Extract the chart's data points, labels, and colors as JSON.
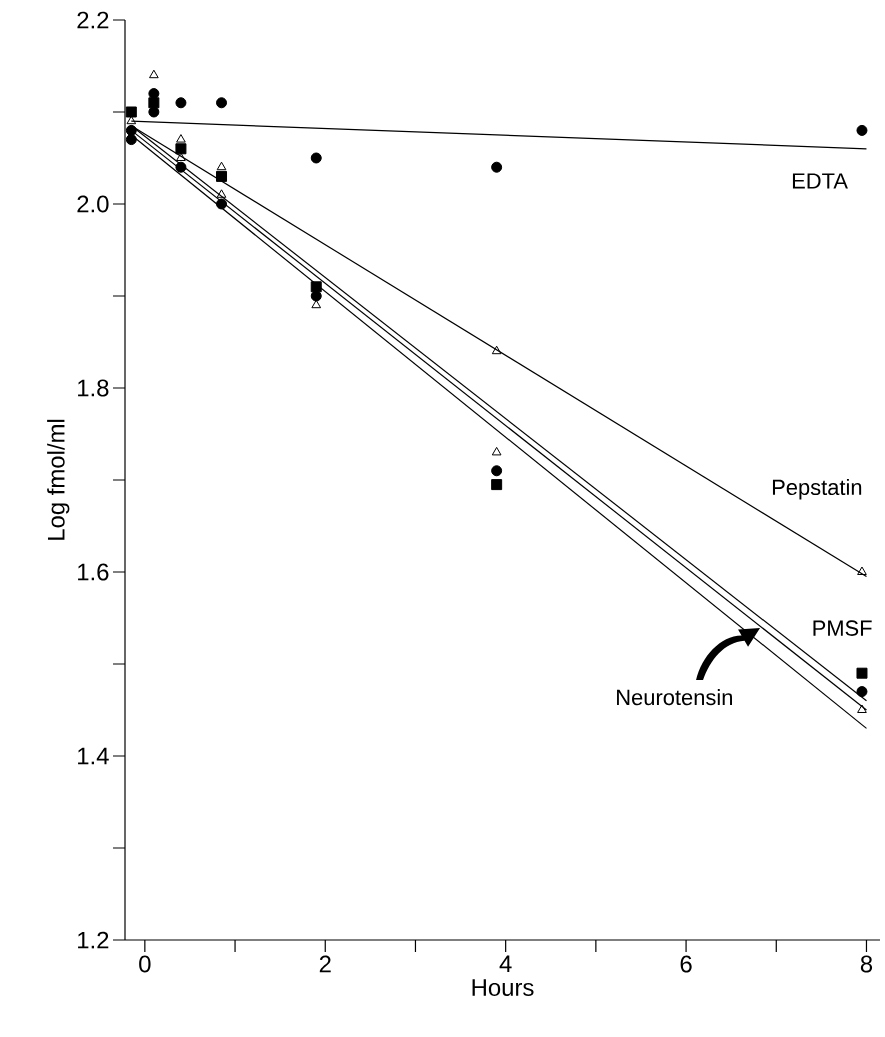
{
  "chart_data": {
    "type": "scatter",
    "xlabel": "Hours",
    "ylabel": "Log fmol/ml",
    "xlim": [
      -0.22,
      8.15
    ],
    "ylim": [
      1.2,
      2.2
    ],
    "xticks": [
      0,
      {
        "value": 1,
        "label": null
      },
      2,
      {
        "value": 3,
        "label": null
      },
      4,
      {
        "value": 5,
        "label": null
      },
      6,
      {
        "value": 7,
        "label": null
      },
      8
    ],
    "yticks": [
      1.2,
      {
        "value": 1.3,
        "label": null
      },
      1.4,
      {
        "value": 1.5,
        "label": null
      },
      1.6,
      {
        "value": 1.7,
        "label": null
      },
      1.8,
      {
        "value": 1.9,
        "label": null
      },
      "2.0",
      {
        "value": 2.1,
        "label": null
      },
      2.2
    ],
    "series": [
      {
        "color": "#000000",
        "marker": "circle",
        "x": [
          -0.15,
          0.1,
          0.4,
          0.85,
          1.9,
          3.9,
          7.95
        ],
        "values": [
          2.08,
          2.1,
          2.11,
          2.11,
          2.05,
          2.04,
          2.08
        ]
      },
      {
        "color": "#000000",
        "marker": "triangle",
        "x": [
          -0.15,
          0.4,
          0.85,
          3.9,
          7.95
        ],
        "values": [
          2.09,
          2.07,
          2.04,
          1.84,
          1.6
        ]
      },
      {
        "color": "#000000",
        "marker": "square",
        "x": [
          -0.15,
          0.1,
          0.4,
          0.85,
          1.9,
          3.9,
          7.95
        ],
        "values": [
          2.1,
          2.11,
          2.06,
          2.03,
          1.91,
          1.695,
          1.49
        ]
      },
      {
        "color": "#000000",
        "marker": "circle",
        "x": [
          -0.15,
          0.1,
          0.4,
          0.85,
          1.9,
          3.9,
          7.95
        ],
        "values": [
          2.07,
          2.12,
          2.04,
          2.0,
          1.9,
          1.71,
          1.47
        ]
      },
      {
        "color": "#000000",
        "marker": "triangle",
        "x": [
          0.1,
          0.4,
          0.85,
          1.9,
          3.9,
          7.95
        ],
        "values": [
          2.14,
          2.05,
          2.01,
          1.89,
          1.73,
          1.45
        ]
      },
      {
        "type": "line",
        "name": "EDTA",
        "color": "#000000",
        "x": [
          -0.15,
          8.0
        ],
        "values": [
          2.09,
          2.06
        ]
      },
      {
        "type": "line",
        "name": "Pepstatin",
        "color": "#000000",
        "x": [
          -0.15,
          8.0
        ],
        "values": [
          2.085,
          1.595
        ]
      },
      {
        "type": "line",
        "name": "PMSF",
        "color": "#000000",
        "x": [
          -0.15,
          8.0
        ],
        "values": [
          2.085,
          1.46
        ]
      },
      {
        "type": "line",
        "name": "Neurotensin",
        "color": "#000000",
        "x": [
          -0.15,
          8.0
        ],
        "values": [
          2.08,
          1.45
        ]
      },
      {
        "type": "line",
        "color": "#000000",
        "x": [
          -0.15,
          8.0
        ],
        "values": [
          2.075,
          1.43
        ]
      }
    ]
  }
}
